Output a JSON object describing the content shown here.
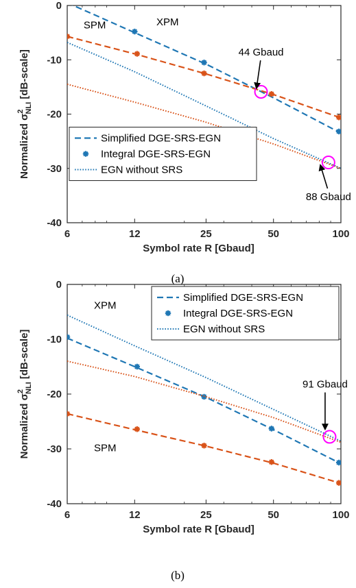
{
  "colors": {
    "blue": "#1f77b4",
    "orange": "#d95319",
    "magenta": "#ff00ff",
    "axis": "#262626"
  },
  "chart_data": [
    {
      "type": "line",
      "caption": "(a)",
      "xlabel": "Symbol rate R [Gbaud]",
      "ylabel_prefix": "Normalized σ",
      "ylabel_sup": "2",
      "ylabel_sub": "NLI",
      "ylabel_suffix": " [dB-scale]",
      "x_scale": "log",
      "xlim": [
        6,
        100
      ],
      "ylim": [
        -40,
        0
      ],
      "xticks": [
        6,
        12,
        25,
        50,
        100
      ],
      "yticks": [
        0,
        -10,
        -20,
        -30,
        -40
      ],
      "legend_position": "lower-left",
      "legend": [
        "Simplified DGE-SRS-EGN",
        "Integral DGE-SRS-EGN",
        "EGN without SRS"
      ],
      "series": [
        {
          "group": "XPM",
          "style": "dashed",
          "color": "blue",
          "x": [
            6,
            12,
            25,
            50,
            100
          ],
          "y": [
            0.5,
            -5,
            -10.8,
            -17,
            -23.5
          ]
        },
        {
          "group": "XPM",
          "style": "markers",
          "color": "blue",
          "x": [
            12,
            24.5,
            98
          ],
          "y": [
            -4.8,
            -10.5,
            -23.2
          ]
        },
        {
          "group": "XPM",
          "style": "dotted",
          "color": "blue",
          "x": [
            6,
            12,
            25,
            50,
            100
          ],
          "y": [
            -6.8,
            -12.2,
            -18.5,
            -24.5,
            -30
          ]
        },
        {
          "group": "SPM",
          "style": "dashed",
          "color": "orange",
          "x": [
            6,
            12,
            25,
            50,
            100
          ],
          "y": [
            -5.7,
            -8.9,
            -12.6,
            -16.4,
            -20.7
          ]
        },
        {
          "group": "SPM",
          "style": "markers",
          "color": "orange",
          "x": [
            6,
            12.3,
            24.5,
            49,
            98
          ],
          "y": [
            -5.7,
            -8.9,
            -12.5,
            -16.3,
            -20.6
          ]
        },
        {
          "group": "SPM",
          "style": "dotted",
          "color": "orange",
          "x": [
            6,
            12,
            25,
            50,
            100
          ],
          "y": [
            -14.5,
            -17.8,
            -21.5,
            -25.5,
            -30
          ]
        }
      ],
      "labels": [
        {
          "text": "SPM",
          "x": 7.1,
          "y": -3.6
        },
        {
          "text": "XPM",
          "x": 15,
          "y": -3.0
        },
        {
          "text": "44 Gbaud",
          "x": 44,
          "y": -8.6,
          "arrow_to": [
            42,
            -15.2
          ]
        },
        {
          "text": "88 Gbaud",
          "x": 88,
          "y": -35.2,
          "arrow_to": [
            81,
            -29.4
          ]
        }
      ],
      "circles": [
        {
          "x": 44,
          "y": -15.9
        },
        {
          "x": 88,
          "y": -28.9
        }
      ]
    },
    {
      "type": "line",
      "caption": "(b)",
      "xlabel": "Symbol rate R [Gbaud]",
      "ylabel_prefix": "Normalized σ",
      "ylabel_sup": "2",
      "ylabel_sub": "NLI",
      "ylabel_suffix": " [dB-scale]",
      "x_scale": "log",
      "xlim": [
        6,
        100
      ],
      "ylim": [
        -40,
        0
      ],
      "xticks": [
        6,
        12,
        25,
        50,
        100
      ],
      "yticks": [
        0,
        -10,
        -20,
        -30,
        -40
      ],
      "legend_position": "top-right",
      "legend": [
        "Simplified DGE-SRS-EGN",
        "Integral DGE-SRS-EGN",
        "EGN without SRS"
      ],
      "series": [
        {
          "group": "XPM",
          "style": "dashed",
          "color": "blue",
          "x": [
            6,
            12,
            25,
            50,
            100
          ],
          "y": [
            -9.8,
            -15,
            -20.6,
            -26.5,
            -32.7
          ]
        },
        {
          "group": "XPM",
          "style": "markers",
          "color": "blue",
          "x": [
            6,
            12.3,
            24.5,
            49,
            98
          ],
          "y": [
            -9.6,
            -15,
            -20.5,
            -26.3,
            -32.5
          ]
        },
        {
          "group": "XPM",
          "style": "dotted",
          "color": "blue",
          "x": [
            6,
            12,
            25,
            50,
            100
          ],
          "y": [
            -5.6,
            -11.2,
            -17,
            -22.8,
            -28.6
          ]
        },
        {
          "group": "SPM",
          "style": "dashed",
          "color": "orange",
          "x": [
            6,
            12,
            25,
            50,
            100
          ],
          "y": [
            -23.6,
            -26.5,
            -29.5,
            -32.6,
            -36.3
          ]
        },
        {
          "group": "SPM",
          "style": "markers",
          "color": "orange",
          "x": [
            6,
            12.3,
            24.5,
            49,
            98
          ],
          "y": [
            -23.6,
            -26.4,
            -29.4,
            -32.4,
            -36.2
          ]
        },
        {
          "group": "SPM",
          "style": "dotted",
          "color": "orange",
          "x": [
            6,
            12,
            25,
            50,
            100
          ],
          "y": [
            -14,
            -16.8,
            -20.5,
            -24.3,
            -28.8
          ]
        }
      ],
      "labels": [
        {
          "text": "XPM",
          "x": 7.9,
          "y": -3.8
        },
        {
          "text": "SPM",
          "x": 7.9,
          "y": -29.8
        },
        {
          "text": "91 Gbaud",
          "x": 85,
          "y": -18.2,
          "arrow_to": [
            85,
            -26.4
          ]
        }
      ],
      "circles": [
        {
          "x": 89,
          "y": -27.8
        }
      ]
    }
  ]
}
